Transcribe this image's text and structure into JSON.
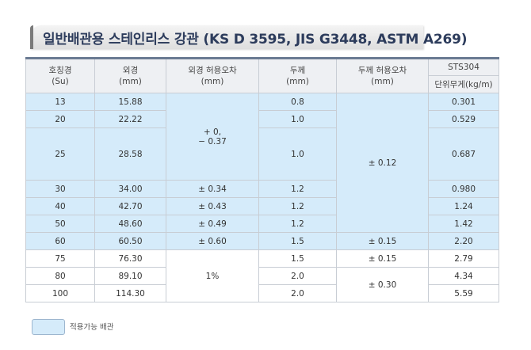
{
  "title": "일반배관용 스테인리스 강관 (KS D 3595, JIS G3448, ASTM A269)",
  "headers": {
    "nominal": [
      "호칭경",
      "(Su)"
    ],
    "od": [
      "외경",
      "(mm)"
    ],
    "od_tol": [
      "외경 허용오차",
      "(mm)"
    ],
    "thickness": [
      "두께",
      "(mm)"
    ],
    "thk_tol": [
      "두께 허용오차",
      "(mm)"
    ],
    "material": "STS304",
    "unit_weight": "단위무게(kg/m)"
  },
  "rows": [
    {
      "nominal": "13",
      "od": "15.88",
      "thickness": "0.8",
      "weight": "0.301"
    },
    {
      "nominal": "20",
      "od": "22.22",
      "thickness": "1.0",
      "weight": "0.529"
    },
    {
      "nominal": "25",
      "od": "28.58",
      "thickness": "1.0",
      "weight": "0.687"
    },
    {
      "nominal": "30",
      "od": "34.00",
      "od_tol": "±  0.34",
      "thickness": "1.2",
      "weight": "0.980"
    },
    {
      "nominal": "40",
      "od": "42.70",
      "od_tol": "±  0.43",
      "thickness": "1.2",
      "weight": "1.24"
    },
    {
      "nominal": "50",
      "od": "48.60",
      "od_tol": "±  0.49",
      "thickness": "1.2",
      "weight": "1.42"
    },
    {
      "nominal": "60",
      "od": "60.50",
      "od_tol": "±  0.60",
      "thickness": "1.5",
      "thk_tol": "±  0.15",
      "weight": "2.20"
    },
    {
      "nominal": "75",
      "od": "76.30",
      "thickness": "1.5",
      "thk_tol": "±  0.15",
      "weight": "2.79"
    },
    {
      "nominal": "80",
      "od": "89.10",
      "thickness": "2.0",
      "weight": "4.34"
    },
    {
      "nominal": "100",
      "od": "114.30",
      "thickness": "2.0",
      "weight": "5.59"
    }
  ],
  "merged": {
    "od_tol_small": [
      "+ 0,",
      "− 0.37"
    ],
    "thk_tol_small": "±  0.12",
    "od_tol_large": "1%",
    "thk_tol_large": "±  0.30"
  },
  "legend": {
    "label": "적용가능 배관",
    "color": "#d5ebfa"
  }
}
